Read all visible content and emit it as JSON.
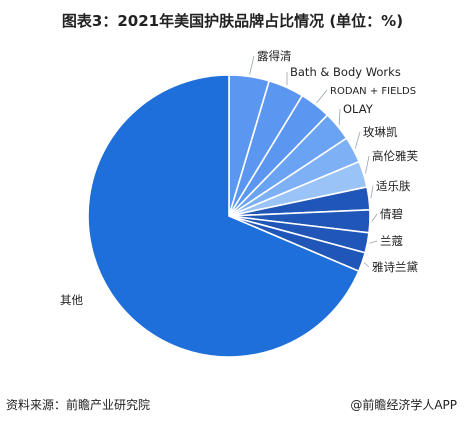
{
  "header": {
    "title": "图表3：2021年美国护肤品牌占比情况 (单位：%)"
  },
  "footer": {
    "source": "资料来源：前瞻产业研究院",
    "brand": "@前瞻经济学人APP"
  },
  "chart_data": {
    "type": "pie",
    "title": "图表3：2021年美国护肤品牌占比情况 (单位：%)",
    "unit": "%",
    "legend": "none",
    "labels": [
      "露得清",
      "Bath & Body Works",
      "RODAN + FIELDS",
      "OLAY",
      "玫琳凯",
      "高伦雅芙",
      "适乐肤",
      "倩碧",
      "兰蔻",
      "雅诗兰黛",
      "其他"
    ],
    "values": [
      4.6,
      4.1,
      3.6,
      3.4,
      3.0,
      3.0,
      2.6,
      2.6,
      2.3,
      2.2,
      68.6
    ],
    "colors": [
      "#5b97f0",
      "#5b97f0",
      "#5b97f0",
      "#6aa3f2",
      "#7db0f4",
      "#9ac4f7",
      "#1f56b8",
      "#1f56b8",
      "#1f56b8",
      "#1f56b8",
      "#1e6fd9"
    ]
  }
}
